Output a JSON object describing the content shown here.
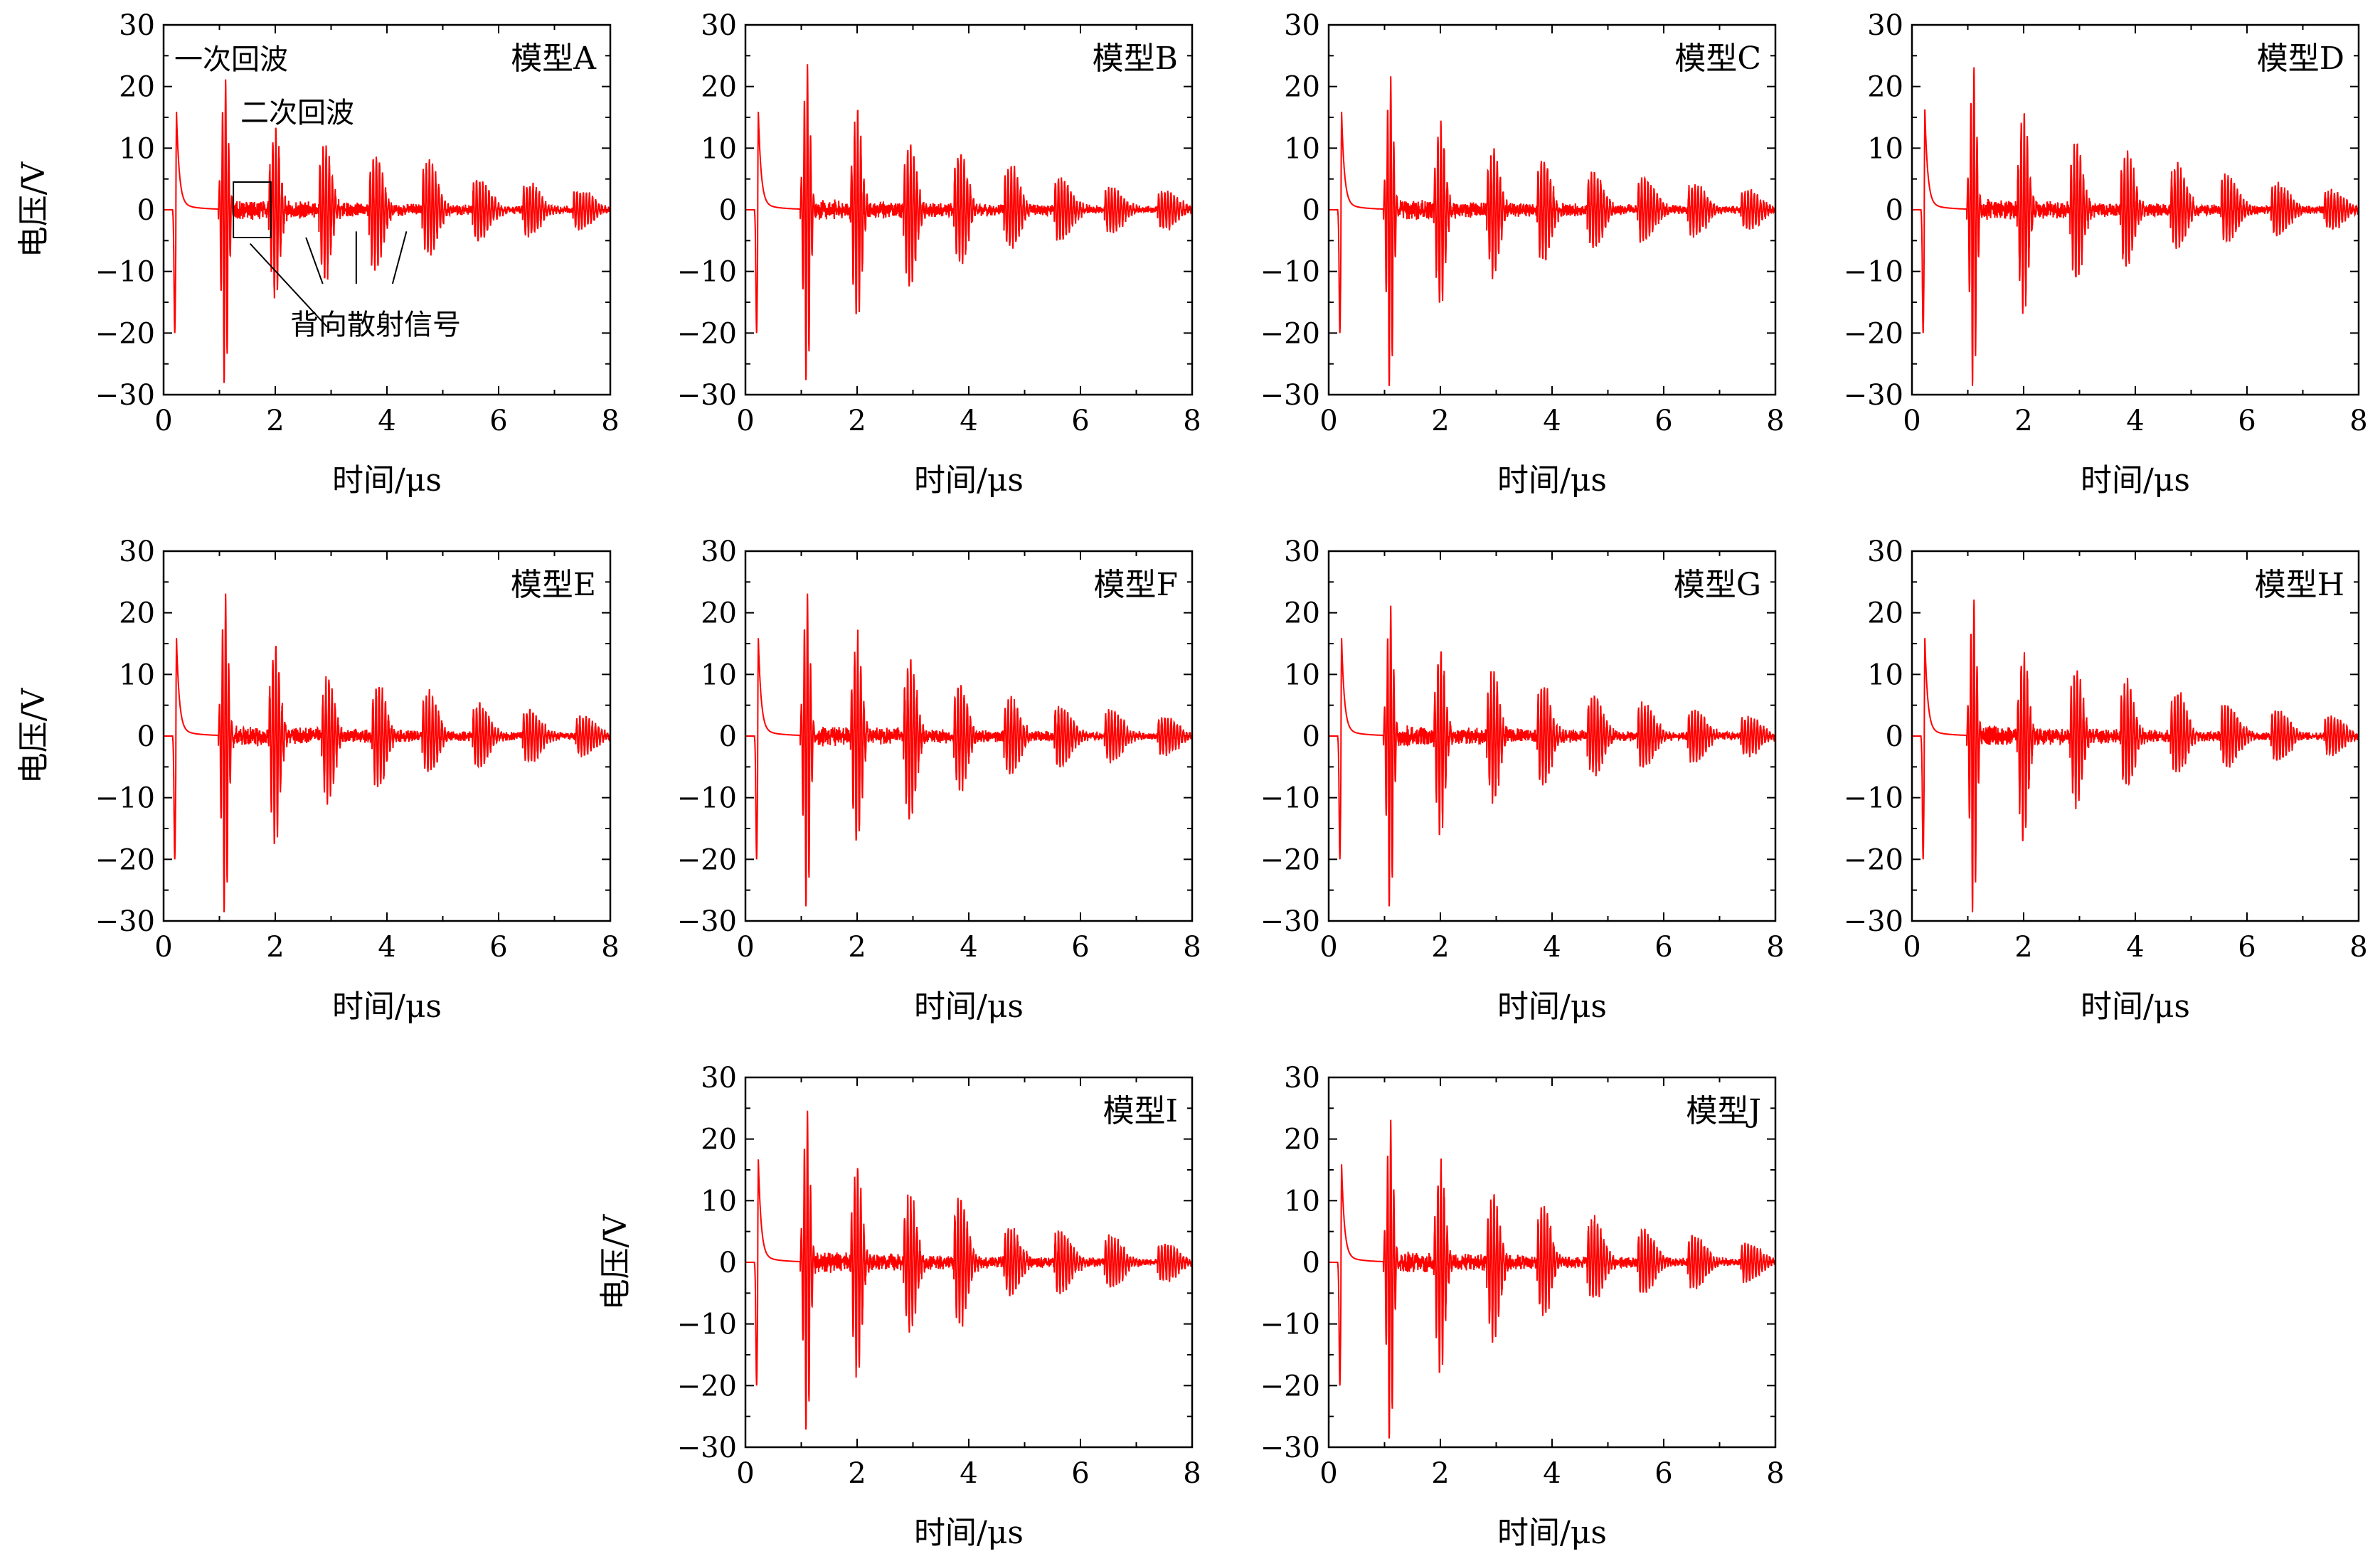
{
  "figure": {
    "signal_color": "#ff0000",
    "annotation_color": "#000000"
  },
  "chart_data": [
    {
      "type": "line",
      "label": "模型A",
      "xlabel": "时间/μs",
      "ylabel": "电压/V",
      "xlim": [
        0,
        8
      ],
      "ylim": [
        -30,
        30
      ],
      "xticks": [
        0,
        2,
        4,
        6,
        8
      ],
      "yticks": [
        -30,
        -20,
        -10,
        0,
        10,
        20,
        30
      ],
      "grid": false,
      "initial_pulse": {
        "t": 0.22,
        "max": 18.5,
        "min": -20
      },
      "echoes": [
        {
          "t": 1.1,
          "max": 21.5,
          "min": -29.5
        },
        {
          "t": 2.0,
          "max": 13.5,
          "min": -14.5
        },
        {
          "t": 2.9,
          "max": 10.5,
          "min": -11
        },
        {
          "t": 3.8,
          "max": 9,
          "min": -9.5
        },
        {
          "t": 4.75,
          "max": 8,
          "min": -7
        },
        {
          "t": 5.65,
          "max": 5,
          "min": -5
        },
        {
          "t": 6.55,
          "max": 4,
          "min": -4
        },
        {
          "t": 7.45,
          "max": 3,
          "min": -3
        }
      ],
      "annotations": {
        "first_echo": "一次回波",
        "second_echo": "二次回波",
        "backscatter": "背向散射信号"
      }
    },
    {
      "type": "line",
      "label": "模型B",
      "xlabel": "时间/μs",
      "ylabel": "",
      "xlim": [
        0,
        8
      ],
      "ylim": [
        -30,
        30
      ],
      "xticks": [
        0,
        2,
        4,
        6,
        8
      ],
      "yticks": [
        -30,
        -20,
        -10,
        0,
        10,
        20,
        30
      ],
      "grid": false,
      "initial_pulse": {
        "t": 0.22,
        "max": 18.5,
        "min": -20
      },
      "echoes": [
        {
          "t": 1.1,
          "max": 24,
          "min": -29
        },
        {
          "t": 2.0,
          "max": 16,
          "min": -18
        },
        {
          "t": 2.95,
          "max": 11,
          "min": -13
        },
        {
          "t": 3.85,
          "max": 9,
          "min": -8.5
        },
        {
          "t": 4.75,
          "max": 7,
          "min": -6
        },
        {
          "t": 5.65,
          "max": 5,
          "min": -5
        },
        {
          "t": 6.55,
          "max": 3.5,
          "min": -3.5
        },
        {
          "t": 7.5,
          "max": 3,
          "min": -3
        }
      ]
    },
    {
      "type": "line",
      "label": "模型C",
      "xlabel": "时间/μs",
      "ylabel": "",
      "xlim": [
        0,
        8
      ],
      "ylim": [
        -30,
        30
      ],
      "xticks": [
        0,
        2,
        4,
        6,
        8
      ],
      "yticks": [
        -30,
        -20,
        -10,
        0,
        10,
        20,
        30
      ],
      "grid": false,
      "initial_pulse": {
        "t": 0.22,
        "max": 18.5,
        "min": -20
      },
      "echoes": [
        {
          "t": 1.1,
          "max": 22,
          "min": -30
        },
        {
          "t": 2.0,
          "max": 14,
          "min": -16.5
        },
        {
          "t": 2.95,
          "max": 10,
          "min": -11
        },
        {
          "t": 3.85,
          "max": 8,
          "min": -8
        },
        {
          "t": 4.75,
          "max": 6,
          "min": -6
        },
        {
          "t": 5.65,
          "max": 5,
          "min": -5
        },
        {
          "t": 6.55,
          "max": 4,
          "min": -4
        },
        {
          "t": 7.5,
          "max": 3,
          "min": -3
        }
      ]
    },
    {
      "type": "line",
      "label": "模型D",
      "xlabel": "时间/μs",
      "ylabel": "",
      "xlim": [
        0,
        8
      ],
      "ylim": [
        -30,
        30
      ],
      "xticks": [
        0,
        2,
        4,
        6,
        8
      ],
      "yticks": [
        -30,
        -20,
        -10,
        0,
        10,
        20,
        30
      ],
      "grid": false,
      "initial_pulse": {
        "t": 0.22,
        "max": 19,
        "min": -20
      },
      "echoes": [
        {
          "t": 1.1,
          "max": 23.5,
          "min": -30
        },
        {
          "t": 2.0,
          "max": 16,
          "min": -17
        },
        {
          "t": 2.95,
          "max": 11,
          "min": -12
        },
        {
          "t": 3.85,
          "max": 9,
          "min": -9
        },
        {
          "t": 4.75,
          "max": 7,
          "min": -6
        },
        {
          "t": 5.65,
          "max": 5.5,
          "min": -5
        },
        {
          "t": 6.55,
          "max": 4,
          "min": -4
        },
        {
          "t": 7.5,
          "max": 3,
          "min": -3
        }
      ]
    },
    {
      "type": "line",
      "label": "模型E",
      "xlabel": "时间/μs",
      "ylabel": "电压/V",
      "xlim": [
        0,
        8
      ],
      "ylim": [
        -30,
        30
      ],
      "xticks": [
        0,
        2,
        4,
        6,
        8
      ],
      "yticks": [
        -30,
        -20,
        -10,
        0,
        10,
        20,
        30
      ],
      "grid": false,
      "initial_pulse": {
        "t": 0.22,
        "max": 18.5,
        "min": -20
      },
      "echoes": [
        {
          "t": 1.1,
          "max": 23.5,
          "min": -30
        },
        {
          "t": 2.0,
          "max": 15,
          "min": -18
        },
        {
          "t": 2.95,
          "max": 9.5,
          "min": -11
        },
        {
          "t": 3.85,
          "max": 8,
          "min": -8
        },
        {
          "t": 4.75,
          "max": 7,
          "min": -6
        },
        {
          "t": 5.65,
          "max": 5,
          "min": -5
        },
        {
          "t": 6.55,
          "max": 4,
          "min": -4
        },
        {
          "t": 7.5,
          "max": 3,
          "min": -3
        }
      ]
    },
    {
      "type": "line",
      "label": "模型F",
      "xlabel": "时间/μs",
      "ylabel": "",
      "xlim": [
        0,
        8
      ],
      "ylim": [
        -30,
        30
      ],
      "xticks": [
        0,
        2,
        4,
        6,
        8
      ],
      "yticks": [
        -30,
        -20,
        -10,
        0,
        10,
        20,
        30
      ],
      "grid": false,
      "initial_pulse": {
        "t": 0.22,
        "max": 18.5,
        "min": -20
      },
      "echoes": [
        {
          "t": 1.1,
          "max": 23.5,
          "min": -29
        },
        {
          "t": 2.0,
          "max": 16,
          "min": -18
        },
        {
          "t": 2.95,
          "max": 12.5,
          "min": -14
        },
        {
          "t": 3.85,
          "max": 8,
          "min": -8.5
        },
        {
          "t": 4.75,
          "max": 6,
          "min": -6
        },
        {
          "t": 5.65,
          "max": 5,
          "min": -5
        },
        {
          "t": 6.55,
          "max": 4,
          "min": -4
        },
        {
          "t": 7.5,
          "max": 3,
          "min": -3
        }
      ]
    },
    {
      "type": "line",
      "label": "模型G",
      "xlabel": "时间/μs",
      "ylabel": "",
      "xlim": [
        0,
        8
      ],
      "ylim": [
        -30,
        30
      ],
      "xticks": [
        0,
        2,
        4,
        6,
        8
      ],
      "yticks": [
        -30,
        -20,
        -10,
        0,
        10,
        20,
        30
      ],
      "grid": false,
      "initial_pulse": {
        "t": 0.22,
        "max": 18.5,
        "min": -20
      },
      "echoes": [
        {
          "t": 1.1,
          "max": 21.5,
          "min": -29
        },
        {
          "t": 2.0,
          "max": 14,
          "min": -16
        },
        {
          "t": 2.95,
          "max": 10.5,
          "min": -10.5
        },
        {
          "t": 3.85,
          "max": 8,
          "min": -8
        },
        {
          "t": 4.75,
          "max": 6.5,
          "min": -6
        },
        {
          "t": 5.65,
          "max": 5,
          "min": -5
        },
        {
          "t": 6.55,
          "max": 4,
          "min": -4
        },
        {
          "t": 7.5,
          "max": 3,
          "min": -3
        }
      ]
    },
    {
      "type": "line",
      "label": "模型H",
      "xlabel": "时间/μs",
      "ylabel": "",
      "xlim": [
        0,
        8
      ],
      "ylim": [
        -30,
        30
      ],
      "xticks": [
        0,
        2,
        4,
        6,
        8
      ],
      "yticks": [
        -30,
        -20,
        -10,
        0,
        10,
        20,
        30
      ],
      "grid": false,
      "initial_pulse": {
        "t": 0.22,
        "max": 18.5,
        "min": -20
      },
      "echoes": [
        {
          "t": 1.1,
          "max": 22.5,
          "min": -30
        },
        {
          "t": 2.0,
          "max": 14,
          "min": -17.5
        },
        {
          "t": 2.95,
          "max": 11,
          "min": -11
        },
        {
          "t": 3.85,
          "max": 8.5,
          "min": -8
        },
        {
          "t": 4.75,
          "max": 7,
          "min": -6
        },
        {
          "t": 5.65,
          "max": 5,
          "min": -5
        },
        {
          "t": 6.55,
          "max": 4,
          "min": -4
        },
        {
          "t": 7.5,
          "max": 3,
          "min": -3
        }
      ]
    },
    {
      "type": "line",
      "label": "模型I",
      "xlabel": "时间/μs",
      "ylabel": "电压/V",
      "xlim": [
        0,
        8
      ],
      "ylim": [
        -30,
        30
      ],
      "xticks": [
        0,
        2,
        4,
        6,
        8
      ],
      "yticks": [
        -30,
        -20,
        -10,
        0,
        10,
        20,
        30
      ],
      "grid": false,
      "initial_pulse": {
        "t": 0.22,
        "max": 19.5,
        "min": -20
      },
      "echoes": [
        {
          "t": 1.1,
          "max": 25,
          "min": -28.5
        },
        {
          "t": 2.0,
          "max": 16,
          "min": -18.5
        },
        {
          "t": 2.95,
          "max": 11,
          "min": -11
        },
        {
          "t": 3.85,
          "max": 10,
          "min": -10
        },
        {
          "t": 4.75,
          "max": 5.5,
          "min": -5
        },
        {
          "t": 5.65,
          "max": 5,
          "min": -5
        },
        {
          "t": 6.55,
          "max": 4,
          "min": -4
        },
        {
          "t": 7.5,
          "max": 3,
          "min": -3
        }
      ]
    },
    {
      "type": "line",
      "label": "模型J",
      "xlabel": "时间/μs",
      "ylabel": "",
      "xlim": [
        0,
        8
      ],
      "ylim": [
        -30,
        30
      ],
      "xticks": [
        0,
        2,
        4,
        6,
        8
      ],
      "yticks": [
        -30,
        -20,
        -10,
        0,
        10,
        20,
        30
      ],
      "grid": false,
      "initial_pulse": {
        "t": 0.22,
        "max": 18.5,
        "min": -20
      },
      "echoes": [
        {
          "t": 1.1,
          "max": 23.5,
          "min": -30
        },
        {
          "t": 2.0,
          "max": 16,
          "min": -18.5
        },
        {
          "t": 2.95,
          "max": 11,
          "min": -13
        },
        {
          "t": 3.85,
          "max": 9,
          "min": -8.5
        },
        {
          "t": 4.75,
          "max": 7,
          "min": -6
        },
        {
          "t": 5.65,
          "max": 5,
          "min": -5
        },
        {
          "t": 6.55,
          "max": 4,
          "min": -4
        },
        {
          "t": 7.5,
          "max": 3,
          "min": -3
        }
      ]
    }
  ]
}
